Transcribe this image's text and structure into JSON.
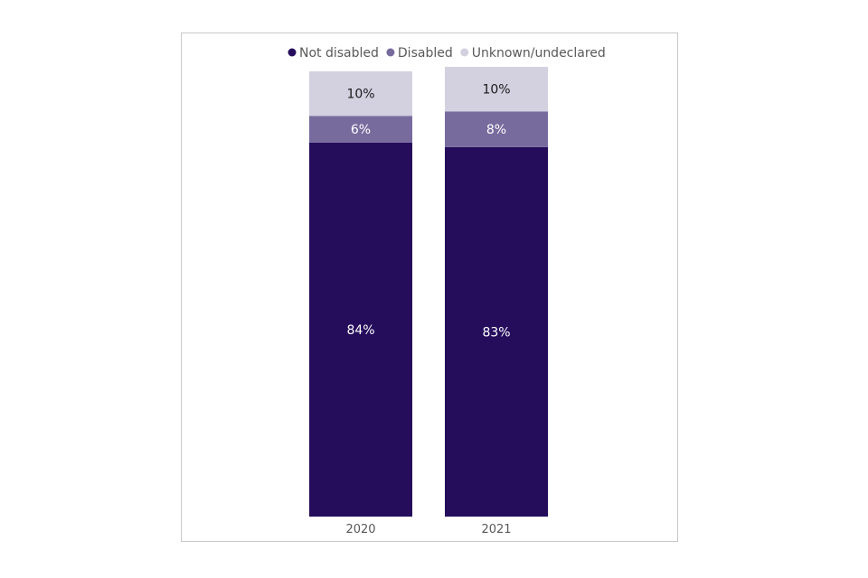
{
  "chart_data": {
    "type": "bar",
    "stacked": true,
    "categories": [
      "2020",
      "2021"
    ],
    "series": [
      {
        "name": "Not disabled",
        "values": [
          84,
          83
        ],
        "labels": [
          "84%",
          "83%"
        ],
        "color": "#250d5c",
        "label_color": "#ffffff"
      },
      {
        "name": "Disabled",
        "values": [
          6,
          8
        ],
        "labels": [
          "6%",
          "8%"
        ],
        "color": "#776b9e",
        "label_color": "#ffffff"
      },
      {
        "name": "Unknown/undeclared",
        "values": [
          10,
          10
        ],
        "labels": [
          "10%",
          "10%"
        ],
        "color": "#d3d0e0",
        "label_color": "#1a1a1a"
      }
    ],
    "ylim": [
      0,
      100
    ],
    "legend_position": "top",
    "grid": false,
    "title": "",
    "xlabel": "",
    "ylabel": ""
  }
}
